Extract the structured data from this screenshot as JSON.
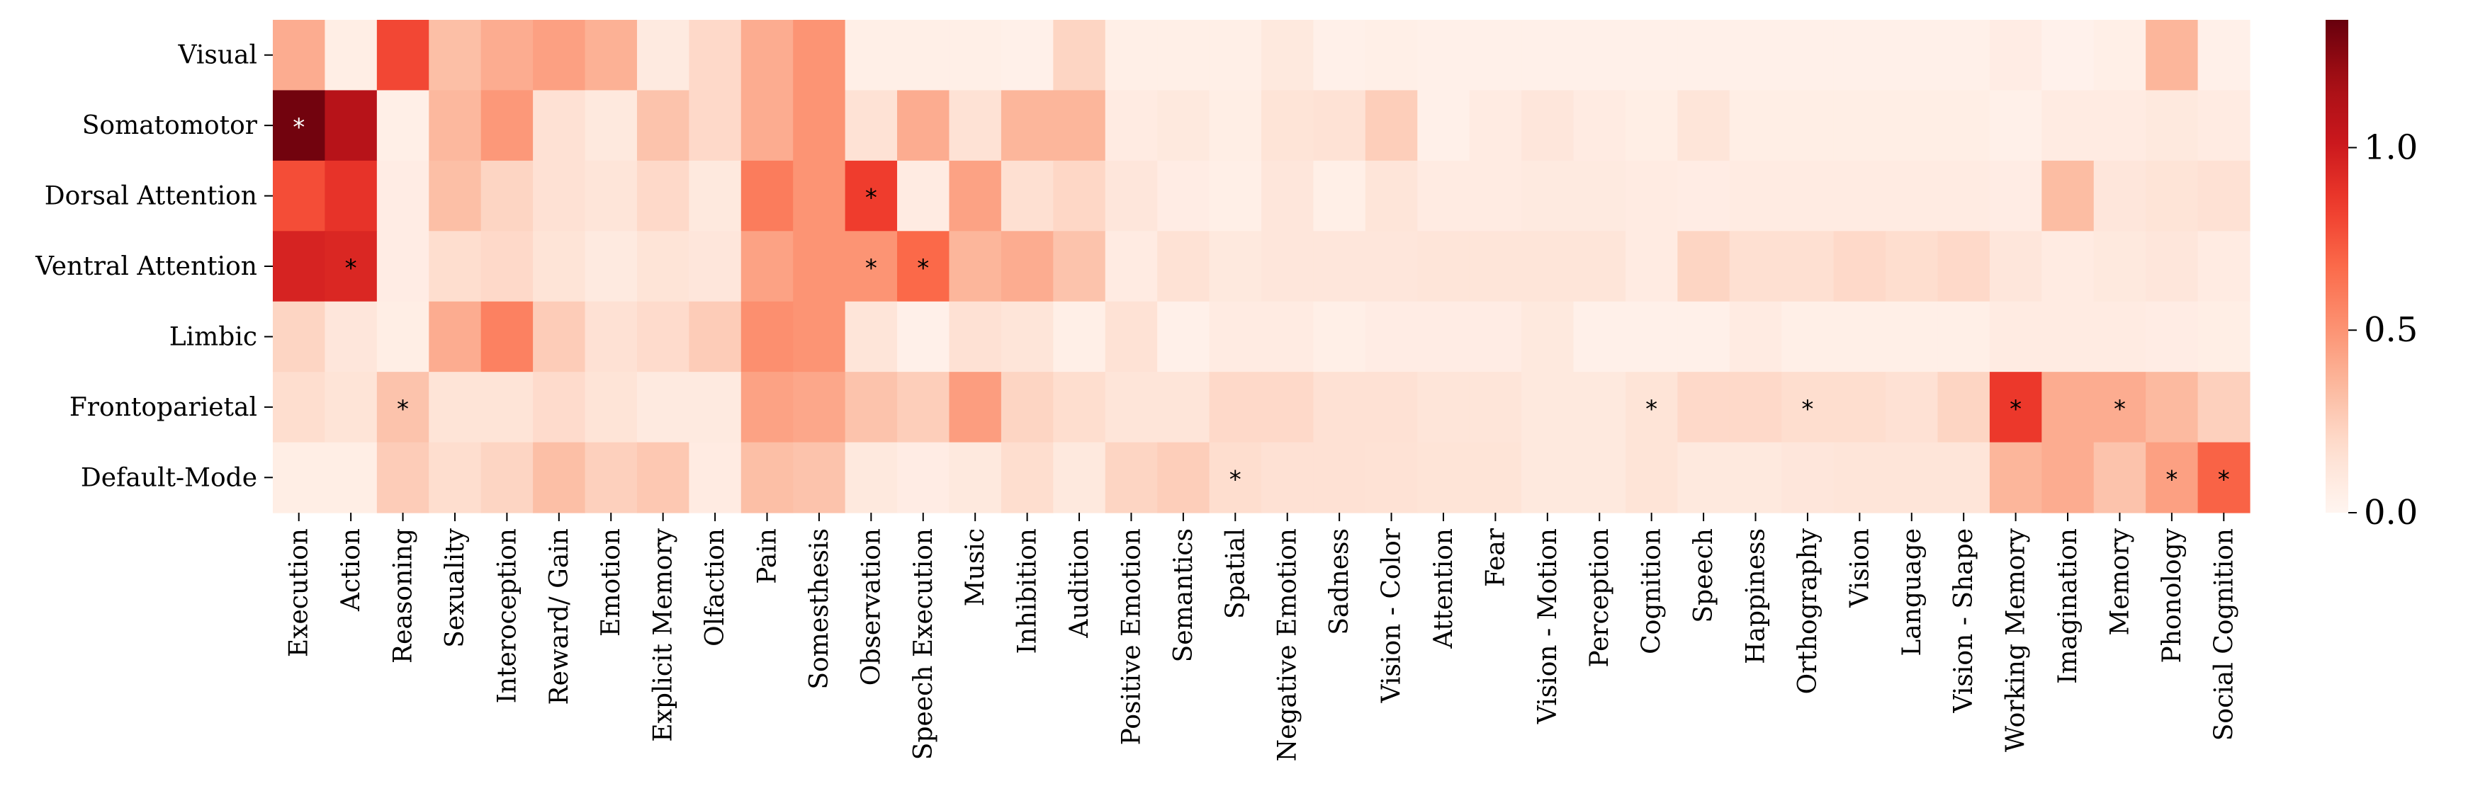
{
  "chart_data": {
    "type": "heatmap",
    "title": "",
    "xlabel": "",
    "ylabel": "",
    "rows": [
      "Visual",
      "Somatomotor",
      "Dorsal Attention",
      "Ventral Attention",
      "Limbic",
      "Frontoparietal",
      "Default-Mode"
    ],
    "columns": [
      "Execution",
      "Action",
      "Reasoning",
      "Sexuality",
      "Interoception",
      "Reward/ Gain",
      "Emotion",
      "Explicit Memory",
      "Olfaction",
      "Pain",
      "Somesthesis",
      "Observation",
      "Speech Execution",
      "Music",
      "Inhibition",
      "Audition",
      "Positive Emotion",
      "Semantics",
      "Spatial",
      "Negative Emotion",
      "Sadness",
      "Vision - Color",
      "Attention",
      "Fear",
      "Vision - Motion",
      "Perception",
      "Cognition",
      "Speech",
      "Happiness",
      "Orthography",
      "Vision",
      "Language",
      "Vision - Shape",
      "Working Memory",
      "Imagination",
      "Memory",
      "Phonology",
      "Social Cognition"
    ],
    "values": [
      [
        0.4,
        0.06,
        0.8,
        0.32,
        0.4,
        0.45,
        0.38,
        0.09,
        0.2,
        0.4,
        0.5,
        0.05,
        0.05,
        0.05,
        0.04,
        0.22,
        0.05,
        0.05,
        0.05,
        0.1,
        0.04,
        0.05,
        0.04,
        0.04,
        0.04,
        0.04,
        0.04,
        0.04,
        0.04,
        0.04,
        0.04,
        0.04,
        0.04,
        0.07,
        0.03,
        0.05,
        0.36,
        0.04
      ],
      [
        1.32,
        1.1,
        0.05,
        0.35,
        0.48,
        0.16,
        0.1,
        0.3,
        0.2,
        0.4,
        0.5,
        0.15,
        0.4,
        0.15,
        0.36,
        0.36,
        0.08,
        0.1,
        0.06,
        0.14,
        0.15,
        0.25,
        0.04,
        0.08,
        0.12,
        0.08,
        0.06,
        0.13,
        0.06,
        0.06,
        0.06,
        0.06,
        0.06,
        0.04,
        0.08,
        0.08,
        0.1,
        0.08
      ],
      [
        0.78,
        0.88,
        0.07,
        0.32,
        0.22,
        0.16,
        0.13,
        0.2,
        0.1,
        0.6,
        0.5,
        0.84,
        0.08,
        0.44,
        0.17,
        0.21,
        0.12,
        0.07,
        0.05,
        0.12,
        0.05,
        0.13,
        0.08,
        0.08,
        0.09,
        0.09,
        0.08,
        0.07,
        0.08,
        0.08,
        0.08,
        0.08,
        0.08,
        0.07,
        0.33,
        0.12,
        0.14,
        0.16
      ],
      [
        0.96,
        0.94,
        0.07,
        0.18,
        0.2,
        0.14,
        0.09,
        0.14,
        0.12,
        0.44,
        0.5,
        0.5,
        0.68,
        0.36,
        0.4,
        0.3,
        0.08,
        0.15,
        0.1,
        0.12,
        0.12,
        0.12,
        0.13,
        0.13,
        0.13,
        0.13,
        0.08,
        0.22,
        0.17,
        0.17,
        0.2,
        0.18,
        0.2,
        0.12,
        0.08,
        0.1,
        0.12,
        0.08
      ],
      [
        0.22,
        0.12,
        0.06,
        0.4,
        0.58,
        0.26,
        0.16,
        0.19,
        0.26,
        0.52,
        0.5,
        0.13,
        0.04,
        0.16,
        0.13,
        0.05,
        0.15,
        0.04,
        0.08,
        0.08,
        0.05,
        0.07,
        0.07,
        0.07,
        0.1,
        0.04,
        0.04,
        0.04,
        0.08,
        0.05,
        0.05,
        0.05,
        0.05,
        0.08,
        0.08,
        0.08,
        0.07,
        0.06
      ],
      [
        0.18,
        0.14,
        0.3,
        0.14,
        0.14,
        0.19,
        0.14,
        0.09,
        0.09,
        0.44,
        0.42,
        0.3,
        0.25,
        0.46,
        0.22,
        0.18,
        0.13,
        0.13,
        0.2,
        0.2,
        0.16,
        0.16,
        0.13,
        0.13,
        0.1,
        0.1,
        0.14,
        0.2,
        0.2,
        0.18,
        0.18,
        0.16,
        0.22,
        0.86,
        0.4,
        0.4,
        0.34,
        0.24
      ],
      [
        0.06,
        0.06,
        0.26,
        0.18,
        0.22,
        0.32,
        0.24,
        0.28,
        0.08,
        0.32,
        0.3,
        0.1,
        0.07,
        0.1,
        0.18,
        0.1,
        0.22,
        0.25,
        0.18,
        0.16,
        0.16,
        0.15,
        0.14,
        0.14,
        0.1,
        0.1,
        0.14,
        0.1,
        0.1,
        0.12,
        0.13,
        0.13,
        0.13,
        0.36,
        0.4,
        0.3,
        0.45,
        0.7
      ]
    ],
    "significant": [
      {
        "row": "Somatomotor",
        "column": "Execution"
      },
      {
        "row": "Dorsal Attention",
        "column": "Observation"
      },
      {
        "row": "Ventral Attention",
        "column": "Action"
      },
      {
        "row": "Ventral Attention",
        "column": "Observation"
      },
      {
        "row": "Ventral Attention",
        "column": "Speech Execution"
      },
      {
        "row": "Frontoparietal",
        "column": "Reasoning"
      },
      {
        "row": "Frontoparietal",
        "column": "Cognition"
      },
      {
        "row": "Frontoparietal",
        "column": "Orthography"
      },
      {
        "row": "Frontoparietal",
        "column": "Working Memory"
      },
      {
        "row": "Frontoparietal",
        "column": "Memory"
      },
      {
        "row": "Default-Mode",
        "column": "Spatial"
      },
      {
        "row": "Default-Mode",
        "column": "Phonology"
      },
      {
        "row": "Default-Mode",
        "column": "Social Cognition"
      }
    ],
    "significance_marker": "*",
    "colorscale": "Reds",
    "colorbar": {
      "range": [
        0.0,
        1.35
      ],
      "ticks": [
        0.0,
        0.5,
        1.0
      ],
      "tick_labels": [
        "0.0",
        "0.5",
        "1.0"
      ]
    },
    "colors": {
      "low": "#fff5f0",
      "high": "#67000d",
      "star_on_light": "#000000",
      "star_on_dark": "#ffffff"
    }
  }
}
